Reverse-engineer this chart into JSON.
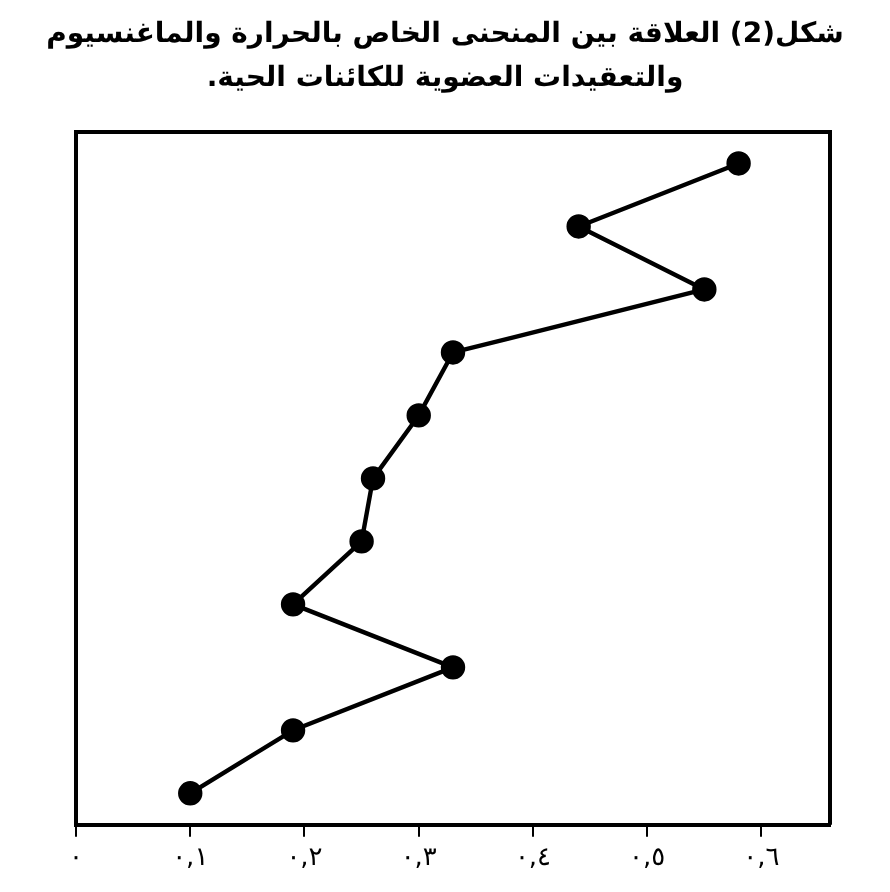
{
  "chart_data": {
    "type": "line",
    "title": "شكل(2) العلاقة بين المنحنى الخاص بالحرارة والماغنسيوم والتعقيدات العضوية للكائنات الحية.",
    "orientation": "horizontal",
    "categories": [
      null,
      null,
      null,
      null,
      null,
      null,
      null,
      null,
      null,
      null,
      null
    ],
    "series": [
      {
        "color": "#000000",
        "values": [
          0.58,
          0.44,
          0.55,
          0.33,
          0.3,
          0.26,
          0.25,
          0.19,
          0.33,
          0.19,
          0.1
        ]
      }
    ],
    "xlim": [
      0,
      0.66
    ],
    "xticks": [
      {
        "value": 0,
        "label": "٠"
      },
      {
        "value": 0.1,
        "label": "٠,١"
      },
      {
        "value": 0.2,
        "label": "٠,٢"
      },
      {
        "value": 0.3,
        "label": "٠,٣"
      },
      {
        "value": 0.4,
        "label": "٠,٤"
      },
      {
        "value": 0.5,
        "label": "٠,٥"
      },
      {
        "value": 0.6,
        "label": "٠,٦"
      }
    ],
    "grid": false,
    "legend": false,
    "tick_labels": "x",
    "marker": "circle",
    "line_style": "solid"
  }
}
